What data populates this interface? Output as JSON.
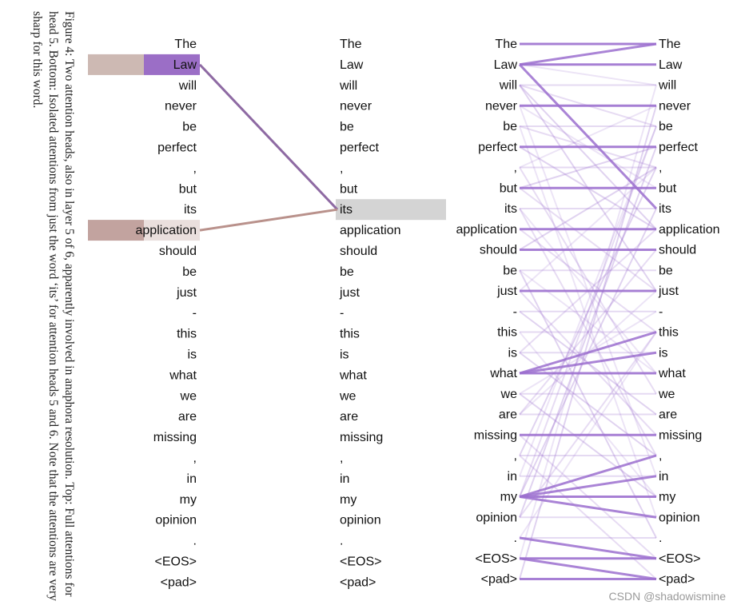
{
  "caption": "Figure 4: Two attention heads, also in layer 5 of 6, apparently involved in anaphora resolution. Top: Full attentions for head 5. Bottom: Isolated attentions from just the word ‘its’ for attention heads 5 and 6. Note that the attentions are very sharp for this word.",
  "tokens": [
    "The",
    "Law",
    "will",
    "never",
    "be",
    "perfect",
    ",",
    "but",
    "its",
    "application",
    "should",
    "be",
    "just",
    "-",
    "this",
    "is",
    "what",
    "we",
    "are",
    "missing",
    ",",
    "in",
    "my",
    "opinion",
    ".",
    "<EOS>",
    "<pad>"
  ],
  "left_view": {
    "query_token_index": 8,
    "head_colors": [
      "#8e6aa3",
      "#b9918b"
    ],
    "highlighted": [
      {
        "token_index": 1,
        "color": "#9b6ec6",
        "swatch_color": "#cdb9b3",
        "weight": 1.0
      },
      {
        "token_index": 9,
        "color": "#c2a39f",
        "swatch_color": "#c2a39f",
        "weight": 0.8
      }
    ],
    "query_highlight_color": "#d4d4d4"
  },
  "right_view": {
    "line_color": "#9c6fcf",
    "strong_links": [
      [
        0,
        0
      ],
      [
        1,
        0
      ],
      [
        1,
        1
      ],
      [
        1,
        8
      ],
      [
        3,
        3
      ],
      [
        5,
        5
      ],
      [
        7,
        7
      ],
      [
        9,
        9
      ],
      [
        10,
        10
      ],
      [
        12,
        12
      ],
      [
        16,
        16
      ],
      [
        16,
        15
      ],
      [
        16,
        14
      ],
      [
        19,
        19
      ],
      [
        22,
        22
      ],
      [
        22,
        21
      ],
      [
        22,
        20
      ],
      [
        22,
        23
      ],
      [
        25,
        25
      ],
      [
        25,
        26
      ],
      [
        26,
        26
      ],
      [
        24,
        25
      ]
    ],
    "faint_links": [
      [
        1,
        2
      ],
      [
        2,
        4
      ],
      [
        2,
        9
      ],
      [
        3,
        7
      ],
      [
        4,
        6
      ],
      [
        5,
        9
      ],
      [
        6,
        3
      ],
      [
        7,
        12
      ],
      [
        7,
        5
      ],
      [
        8,
        16
      ],
      [
        9,
        14
      ],
      [
        10,
        6
      ],
      [
        11,
        16
      ],
      [
        12,
        19
      ],
      [
        13,
        18
      ],
      [
        14,
        22
      ],
      [
        15,
        9
      ],
      [
        17,
        22
      ],
      [
        18,
        12
      ],
      [
        19,
        25
      ],
      [
        20,
        6
      ],
      [
        21,
        4
      ],
      [
        23,
        14
      ],
      [
        23,
        5
      ],
      [
        24,
        14
      ],
      [
        22,
        4
      ],
      [
        22,
        8
      ],
      [
        25,
        2
      ],
      [
        20,
        26
      ],
      [
        26,
        3
      ],
      [
        17,
        13
      ],
      [
        18,
        10
      ],
      [
        15,
        20
      ],
      [
        3,
        21
      ],
      [
        6,
        17
      ],
      [
        11,
        24
      ],
      [
        4,
        23
      ],
      [
        8,
        20
      ],
      [
        2,
        12
      ],
      [
        12,
        6
      ]
    ]
  },
  "watermark": "CSDN @shadowismine"
}
